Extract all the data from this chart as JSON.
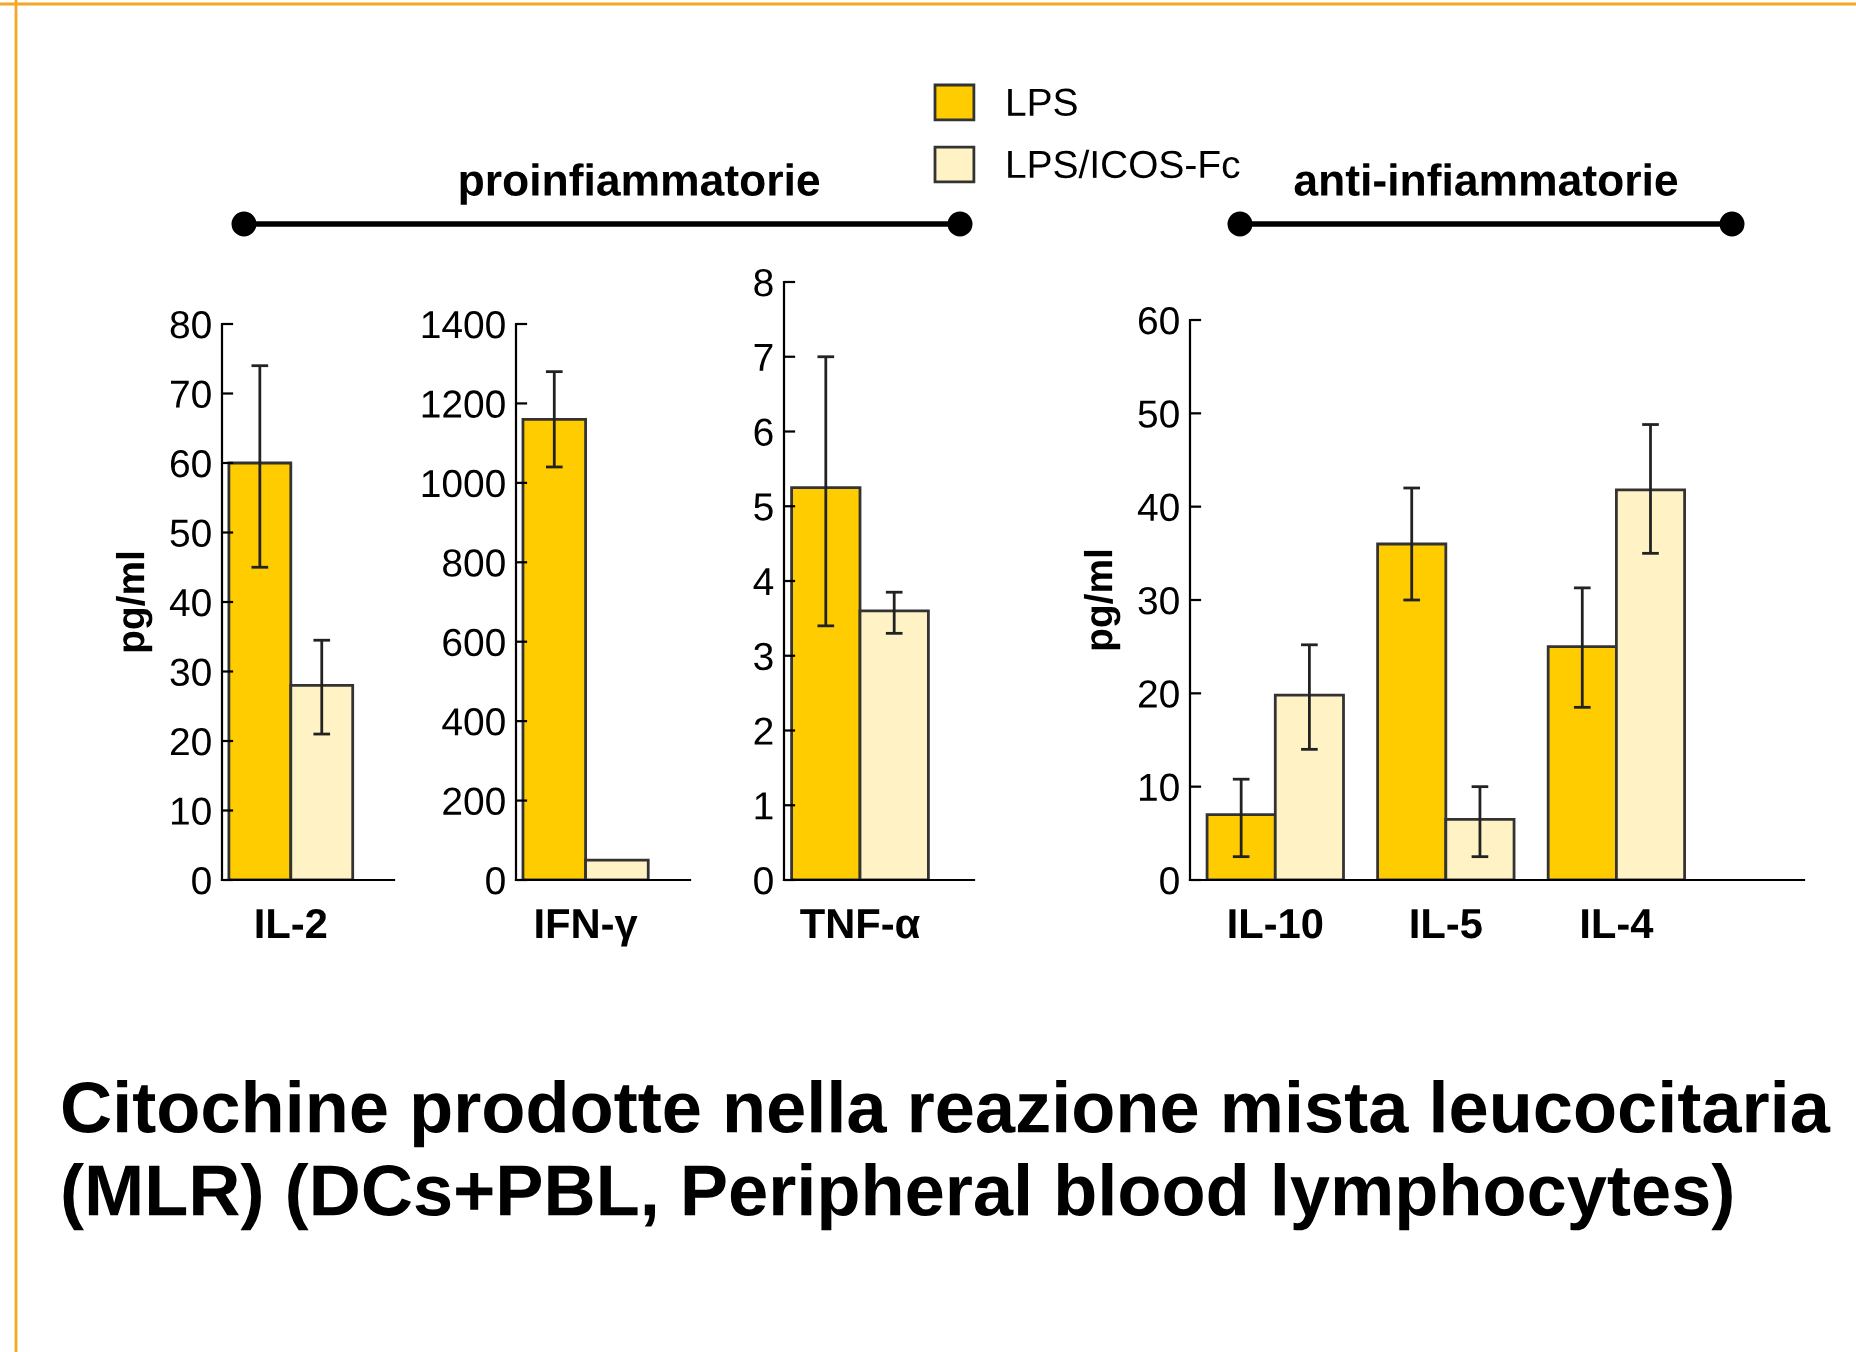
{
  "chart_data": [
    {
      "type": "bar",
      "categories": [
        "IL-2"
      ],
      "ylabel": "pg/ml",
      "ylim": [
        0,
        80
      ],
      "yticks": [
        0,
        10,
        20,
        30,
        40,
        50,
        60,
        70,
        80
      ],
      "legend": "top",
      "grid": false,
      "annotations": [
        "proinfiammatorie",
        "Citochine prodotte nella reazione mista leucocitaria (MLR) (DCs+PBL, Peripheral blood lymphocytes)"
      ],
      "series": [
        {
          "name": "LPS",
          "color": "#ffcc00",
          "values": [
            60
          ],
          "errors": [
            [
              45,
              74
            ]
          ]
        },
        {
          "name": "LPS/ICOS-Fc",
          "color": "#fff2c4",
          "values": [
            28
          ],
          "errors": [
            [
              21,
              34.5
            ]
          ]
        }
      ]
    },
    {
      "type": "bar",
      "categories": [
        "IFN-γ"
      ],
      "ylim": [
        0,
        1400
      ],
      "yticks": [
        0,
        200,
        400,
        600,
        800,
        1000,
        1200,
        1400
      ],
      "grid": false,
      "series": [
        {
          "color": "#ffcc00",
          "values": [
            1160
          ],
          "errors": [
            [
              1040,
              1280
            ]
          ]
        },
        {
          "color": "#fff2c4",
          "values": [
            50
          ],
          "errors": [
            null
          ]
        }
      ]
    },
    {
      "type": "bar",
      "categories": [
        "TNF-α"
      ],
      "ylim": [
        0,
        8
      ],
      "yticks": [
        0,
        1,
        2,
        3,
        4,
        5,
        6,
        7,
        8
      ],
      "grid": false,
      "series": [
        {
          "color": "#ffcc00",
          "values": [
            5.25
          ],
          "errors": [
            [
              3.4,
              7.0
            ]
          ]
        },
        {
          "color": "#fff2c4",
          "values": [
            3.6
          ],
          "errors": [
            [
              3.3,
              3.85
            ]
          ]
        }
      ]
    },
    {
      "type": "bar",
      "categories": [
        "IL-10",
        "IL-5",
        "IL-4"
      ],
      "ylabel": "pg/ml",
      "ylim": [
        0,
        60
      ],
      "yticks": [
        0,
        10,
        20,
        30,
        40,
        50,
        60
      ],
      "grid": false,
      "annotations": [
        "anti-infiammatorie"
      ],
      "series": [
        {
          "color": "#ffcc00",
          "values": [
            7,
            36,
            25
          ],
          "errors": [
            [
              2.5,
              10.8
            ],
            [
              30,
              42
            ],
            [
              18.5,
              31.3
            ]
          ]
        },
        {
          "color": "#fff2c4",
          "values": [
            19.8,
            6.5,
            41.8
          ],
          "errors": [
            [
              14,
              25.2
            ],
            [
              2.5,
              10
            ],
            [
              35,
              48.8
            ]
          ]
        }
      ]
    }
  ]
}
